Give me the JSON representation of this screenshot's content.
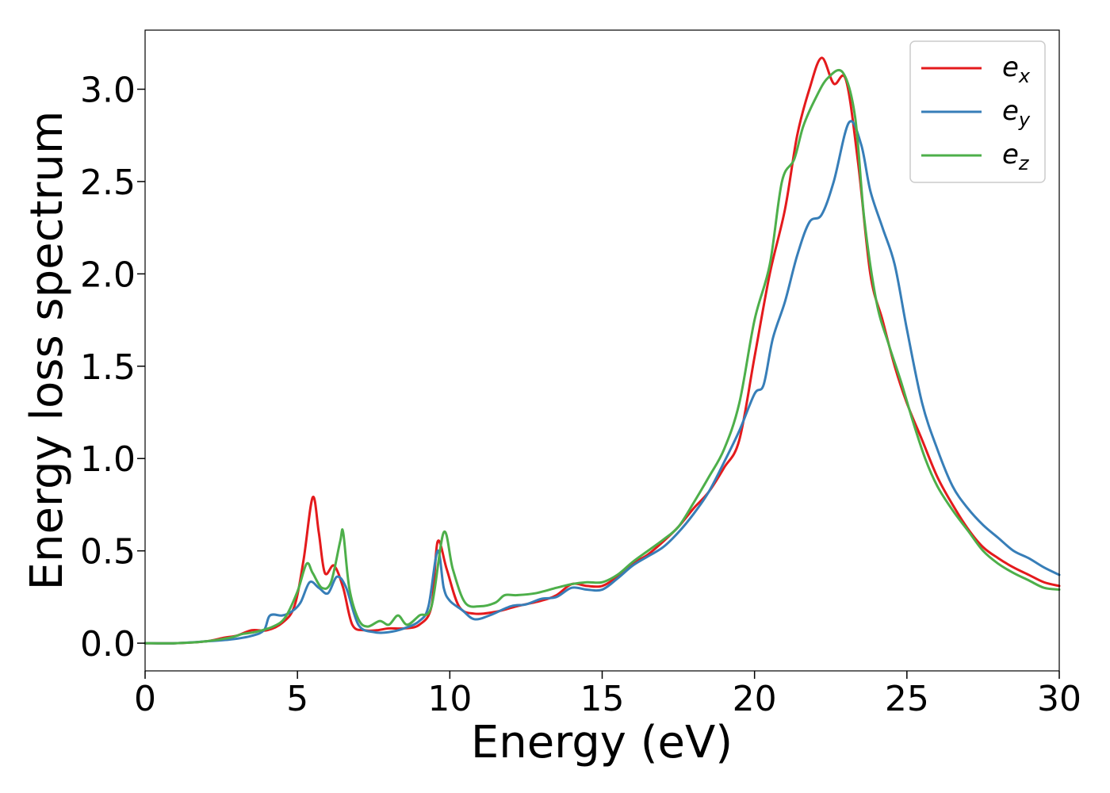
{
  "chart_data": {
    "type": "line",
    "title": "",
    "xlabel": "Energy (eV)",
    "ylabel": "Energy loss spectrum",
    "xlim": [
      0,
      30
    ],
    "ylim": [
      -0.15,
      3.32
    ],
    "xticks": [
      0,
      5,
      10,
      15,
      20,
      25,
      30
    ],
    "xtick_labels": [
      "0",
      "5",
      "10",
      "15",
      "20",
      "25",
      "30"
    ],
    "yticks": [
      0.0,
      0.5,
      1.0,
      1.5,
      2.0,
      2.5,
      3.0
    ],
    "ytick_labels": [
      "0.0",
      "0.5",
      "1.0",
      "1.5",
      "2.0",
      "2.5",
      "3.0"
    ],
    "grid": false,
    "legend_position": "top-right",
    "series": [
      {
        "name": "e",
        "subscript": "x",
        "color": "#e41a1c",
        "points": [
          [
            0,
            0.0
          ],
          [
            1,
            0.0
          ],
          [
            2,
            0.01
          ],
          [
            2.6,
            0.03
          ],
          [
            3.0,
            0.04
          ],
          [
            3.5,
            0.07
          ],
          [
            4.0,
            0.07
          ],
          [
            4.5,
            0.11
          ],
          [
            4.9,
            0.2
          ],
          [
            5.2,
            0.45
          ],
          [
            5.5,
            0.79
          ],
          [
            5.7,
            0.6
          ],
          [
            5.9,
            0.38
          ],
          [
            6.2,
            0.42
          ],
          [
            6.5,
            0.3
          ],
          [
            6.8,
            0.1
          ],
          [
            7.2,
            0.07
          ],
          [
            7.6,
            0.07
          ],
          [
            8.0,
            0.08
          ],
          [
            8.5,
            0.08
          ],
          [
            9.0,
            0.1
          ],
          [
            9.4,
            0.2
          ],
          [
            9.6,
            0.55
          ],
          [
            9.9,
            0.4
          ],
          [
            10.3,
            0.2
          ],
          [
            10.8,
            0.16
          ],
          [
            11.5,
            0.17
          ],
          [
            12.2,
            0.2
          ],
          [
            13.0,
            0.23
          ],
          [
            13.5,
            0.26
          ],
          [
            14.0,
            0.32
          ],
          [
            14.5,
            0.31
          ],
          [
            15.0,
            0.31
          ],
          [
            15.5,
            0.36
          ],
          [
            16.0,
            0.43
          ],
          [
            16.5,
            0.48
          ],
          [
            17.0,
            0.55
          ],
          [
            17.5,
            0.63
          ],
          [
            18.0,
            0.73
          ],
          [
            18.5,
            0.82
          ],
          [
            19.0,
            0.95
          ],
          [
            19.5,
            1.1
          ],
          [
            20.0,
            1.55
          ],
          [
            20.5,
            2.0
          ],
          [
            21.0,
            2.35
          ],
          [
            21.4,
            2.75
          ],
          [
            21.8,
            3.0
          ],
          [
            22.2,
            3.17
          ],
          [
            22.6,
            3.03
          ],
          [
            23.0,
            3.05
          ],
          [
            23.4,
            2.6
          ],
          [
            23.8,
            2.0
          ],
          [
            24.2,
            1.75
          ],
          [
            24.6,
            1.5
          ],
          [
            25.0,
            1.3
          ],
          [
            25.5,
            1.1
          ],
          [
            26.0,
            0.9
          ],
          [
            26.5,
            0.75
          ],
          [
            27.0,
            0.62
          ],
          [
            27.5,
            0.52
          ],
          [
            28.0,
            0.46
          ],
          [
            28.5,
            0.41
          ],
          [
            29.0,
            0.37
          ],
          [
            29.5,
            0.33
          ],
          [
            30.0,
            0.31
          ]
        ]
      },
      {
        "name": "e",
        "subscript": "y",
        "color": "#377eb8",
        "points": [
          [
            0,
            0.0
          ],
          [
            1,
            0.0
          ],
          [
            2,
            0.01
          ],
          [
            2.8,
            0.02
          ],
          [
            3.5,
            0.04
          ],
          [
            3.9,
            0.07
          ],
          [
            4.1,
            0.15
          ],
          [
            4.5,
            0.15
          ],
          [
            4.8,
            0.17
          ],
          [
            5.1,
            0.22
          ],
          [
            5.4,
            0.33
          ],
          [
            5.7,
            0.3
          ],
          [
            6.0,
            0.27
          ],
          [
            6.3,
            0.36
          ],
          [
            6.6,
            0.3
          ],
          [
            7.0,
            0.1
          ],
          [
            7.5,
            0.06
          ],
          [
            8.0,
            0.06
          ],
          [
            8.5,
            0.08
          ],
          [
            9.0,
            0.12
          ],
          [
            9.3,
            0.2
          ],
          [
            9.6,
            0.5
          ],
          [
            9.8,
            0.3
          ],
          [
            10.0,
            0.23
          ],
          [
            10.4,
            0.18
          ],
          [
            10.8,
            0.13
          ],
          [
            11.3,
            0.15
          ],
          [
            12.0,
            0.2
          ],
          [
            12.5,
            0.21
          ],
          [
            13.0,
            0.24
          ],
          [
            13.5,
            0.25
          ],
          [
            14.0,
            0.3
          ],
          [
            14.5,
            0.29
          ],
          [
            15.0,
            0.29
          ],
          [
            15.5,
            0.35
          ],
          [
            16.0,
            0.42
          ],
          [
            16.5,
            0.47
          ],
          [
            17.0,
            0.52
          ],
          [
            17.5,
            0.6
          ],
          [
            18.0,
            0.7
          ],
          [
            18.5,
            0.82
          ],
          [
            19.0,
            0.98
          ],
          [
            19.5,
            1.15
          ],
          [
            20.0,
            1.35
          ],
          [
            20.3,
            1.4
          ],
          [
            20.6,
            1.65
          ],
          [
            21.0,
            1.85
          ],
          [
            21.4,
            2.1
          ],
          [
            21.8,
            2.28
          ],
          [
            22.2,
            2.32
          ],
          [
            22.6,
            2.5
          ],
          [
            23.1,
            2.82
          ],
          [
            23.5,
            2.7
          ],
          [
            23.8,
            2.45
          ],
          [
            24.2,
            2.25
          ],
          [
            24.6,
            2.05
          ],
          [
            25.0,
            1.7
          ],
          [
            25.5,
            1.3
          ],
          [
            26.0,
            1.05
          ],
          [
            26.5,
            0.85
          ],
          [
            27.0,
            0.73
          ],
          [
            27.5,
            0.64
          ],
          [
            28.0,
            0.57
          ],
          [
            28.5,
            0.5
          ],
          [
            29.0,
            0.46
          ],
          [
            29.5,
            0.41
          ],
          [
            30.0,
            0.37
          ]
        ]
      },
      {
        "name": "e",
        "subscript": "z",
        "color": "#4daf4a",
        "points": [
          [
            0,
            0.0
          ],
          [
            1,
            0.0
          ],
          [
            2,
            0.01
          ],
          [
            2.8,
            0.03
          ],
          [
            3.2,
            0.05
          ],
          [
            3.6,
            0.06
          ],
          [
            4.2,
            0.09
          ],
          [
            4.6,
            0.14
          ],
          [
            5.0,
            0.28
          ],
          [
            5.3,
            0.43
          ],
          [
            5.5,
            0.38
          ],
          [
            5.8,
            0.3
          ],
          [
            6.1,
            0.33
          ],
          [
            6.4,
            0.55
          ],
          [
            6.5,
            0.6
          ],
          [
            6.7,
            0.3
          ],
          [
            7.0,
            0.13
          ],
          [
            7.3,
            0.09
          ],
          [
            7.7,
            0.12
          ],
          [
            8.0,
            0.1
          ],
          [
            8.3,
            0.15
          ],
          [
            8.6,
            0.1
          ],
          [
            9.0,
            0.15
          ],
          [
            9.4,
            0.2
          ],
          [
            9.8,
            0.6
          ],
          [
            10.1,
            0.4
          ],
          [
            10.5,
            0.22
          ],
          [
            11.0,
            0.2
          ],
          [
            11.5,
            0.22
          ],
          [
            11.8,
            0.26
          ],
          [
            12.2,
            0.26
          ],
          [
            12.8,
            0.27
          ],
          [
            13.5,
            0.3
          ],
          [
            14.0,
            0.32
          ],
          [
            14.5,
            0.33
          ],
          [
            15.0,
            0.33
          ],
          [
            15.5,
            0.37
          ],
          [
            16.0,
            0.44
          ],
          [
            16.5,
            0.5
          ],
          [
            17.0,
            0.56
          ],
          [
            17.5,
            0.63
          ],
          [
            18.0,
            0.76
          ],
          [
            18.5,
            0.9
          ],
          [
            19.0,
            1.05
          ],
          [
            19.5,
            1.3
          ],
          [
            20.0,
            1.75
          ],
          [
            20.5,
            2.05
          ],
          [
            20.9,
            2.5
          ],
          [
            21.3,
            2.62
          ],
          [
            21.6,
            2.8
          ],
          [
            22.0,
            2.95
          ],
          [
            22.4,
            3.06
          ],
          [
            22.9,
            3.09
          ],
          [
            23.3,
            2.85
          ],
          [
            23.6,
            2.3
          ],
          [
            24.0,
            1.85
          ],
          [
            24.4,
            1.62
          ],
          [
            24.8,
            1.42
          ],
          [
            25.2,
            1.2
          ],
          [
            25.6,
            1.0
          ],
          [
            26.0,
            0.85
          ],
          [
            26.5,
            0.72
          ],
          [
            27.0,
            0.61
          ],
          [
            27.5,
            0.5
          ],
          [
            28.0,
            0.43
          ],
          [
            28.5,
            0.38
          ],
          [
            29.0,
            0.34
          ],
          [
            29.5,
            0.3
          ],
          [
            30.0,
            0.29
          ]
        ]
      }
    ]
  }
}
